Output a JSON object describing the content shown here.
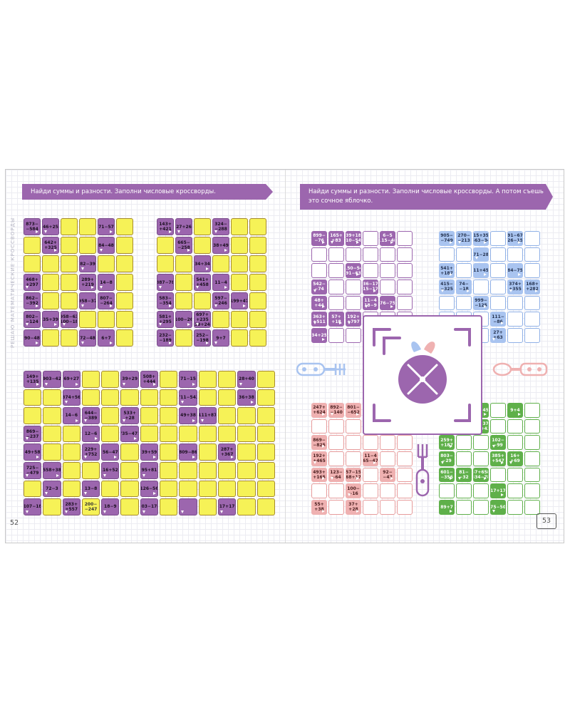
{
  "left_page": {
    "instruction": "Найди суммы и разности. Заполни числовые кроссворды.",
    "side_label": "РЕШАЮ МАТЕМАТИЧЕСКИЕ КРОССВОРДЫ",
    "page_number": "52",
    "crossword_1": {
      "cols": 6,
      "rows": 7,
      "cells": [
        [
          "873−\n−584",
          "46+25",
          "",
          "",
          "71−57",
          ""
        ],
        [
          "",
          "642+\n+325",
          "",
          "",
          "84−48",
          ""
        ],
        [
          "",
          "",
          "",
          "82−39",
          "",
          ""
        ],
        [
          "468+\n+297",
          "",
          "",
          "289+\n+219",
          "14−8",
          ""
        ],
        [
          "862−\n−392",
          "",
          "",
          "958−37",
          "807−\n−264",
          ""
        ],
        [
          "802−\n−124",
          "35+39",
          "958−63\n100−18",
          "",
          "",
          ""
        ],
        [
          "90−48",
          "",
          "",
          "72−48",
          "6+7",
          ""
        ]
      ],
      "purple": [
        [
          0,
          0
        ],
        [
          0,
          1
        ],
        [
          0,
          4
        ],
        [
          1,
          1
        ],
        [
          1,
          4
        ],
        [
          2,
          3
        ],
        [
          3,
          0
        ],
        [
          3,
          3
        ],
        [
          3,
          4
        ],
        [
          4,
          0
        ],
        [
          4,
          3
        ],
        [
          4,
          4
        ],
        [
          5,
          0
        ],
        [
          5,
          1
        ],
        [
          5,
          2
        ],
        [
          6,
          0
        ],
        [
          6,
          3
        ],
        [
          6,
          4
        ]
      ]
    },
    "crossword_2": {
      "cols": 6,
      "rows": 7,
      "cells": [
        [
          "143+\n+421",
          "27+26",
          "",
          "324−\n−288",
          "",
          ""
        ],
        [
          "",
          "665−\n−258",
          "",
          "38+49",
          "",
          ""
        ],
        [
          "",
          "",
          "34+34",
          "",
          "",
          ""
        ],
        [
          "887−78",
          "",
          "541+\n+458",
          "11−4",
          "",
          ""
        ],
        [
          "583−\n−354",
          "",
          "",
          "597−\n−246",
          "199+47",
          ""
        ],
        [
          "581+\n+295",
          "100−26",
          "697+\n+235\n39+24",
          "",
          "",
          ""
        ],
        [
          "232−\n−189",
          "",
          "252−\n−198",
          "9+7",
          "",
          ""
        ]
      ],
      "purple": [
        [
          0,
          0
        ],
        [
          0,
          1
        ],
        [
          0,
          3
        ],
        [
          1,
          1
        ],
        [
          1,
          3
        ],
        [
          2,
          2
        ],
        [
          3,
          0
        ],
        [
          3,
          2
        ],
        [
          3,
          3
        ],
        [
          4,
          0
        ],
        [
          4,
          3
        ],
        [
          4,
          4
        ],
        [
          5,
          0
        ],
        [
          5,
          1
        ],
        [
          5,
          2
        ],
        [
          6,
          0
        ],
        [
          6,
          2
        ],
        [
          6,
          3
        ]
      ]
    },
    "crossword_3": {
      "cols": 13,
      "rows": 8,
      "cells": [
        [
          "149+\n+135",
          "903−42",
          "69+27",
          "",
          "",
          "39+29",
          "508+\n+444",
          "",
          "71−15",
          "",
          "",
          "28+40",
          ""
        ],
        [
          "",
          "",
          "374+56",
          "",
          "",
          "",
          "",
          "",
          "711−542",
          "",
          "",
          "36+38",
          ""
        ],
        [
          "",
          "",
          "14−6",
          "644−\n−389",
          "",
          "533+\n+28",
          "",
          "",
          "49+38",
          "2111+873",
          "",
          "",
          ""
        ],
        [
          "869−\n−237",
          "",
          "",
          "12−6",
          "",
          "735−471",
          "",
          "",
          "",
          "",
          "",
          "",
          ""
        ],
        [
          "49+58",
          "",
          "",
          "229+\n+752",
          "56−47",
          "",
          "39+59",
          "",
          "809−86",
          "",
          "287+\n+367",
          "",
          ""
        ],
        [
          "725−\n−479",
          "558+38",
          "",
          "",
          "116+527",
          "",
          "95+81",
          "",
          "",
          "",
          "",
          "",
          ""
        ],
        [
          "",
          "72−3",
          "",
          "13−8",
          "",
          "",
          "126−56",
          "",
          "",
          "",
          "",
          "",
          ""
        ],
        [
          "107−18",
          "",
          "283+\n+557",
          "",
          "18−9",
          "",
          "203−178",
          "",
          "",
          "",
          "",
          "",
          ""
        ]
      ],
      "purple": [
        [
          0,
          0
        ],
        [
          0,
          1
        ],
        [
          0,
          2
        ],
        [
          0,
          5
        ],
        [
          0,
          6
        ],
        [
          0,
          8
        ],
        [
          0,
          11
        ],
        [
          1,
          2
        ],
        [
          1,
          8
        ],
        [
          1,
          11
        ],
        [
          2,
          2
        ],
        [
          2,
          3
        ],
        [
          2,
          5
        ],
        [
          2,
          8
        ],
        [
          2,
          9
        ],
        [
          3,
          0
        ],
        [
          3,
          3
        ],
        [
          3,
          5
        ],
        [
          4,
          0
        ],
        [
          4,
          3
        ],
        [
          4,
          4
        ],
        [
          4,
          6
        ],
        [
          4,
          8
        ],
        [
          4,
          10
        ],
        [
          5,
          0
        ],
        [
          5,
          1
        ],
        [
          5,
          4
        ],
        [
          5,
          6
        ],
        [
          6,
          1
        ],
        [
          6,
          3
        ],
        [
          6,
          6
        ],
        [
          7,
          0
        ],
        [
          7,
          2
        ],
        [
          7,
          4
        ],
        [
          7,
          6
        ],
        [
          7,
          8
        ],
        [
          7,
          10
        ]
      ],
      "extra_labels": {
        "r7c3": "200−\n−247",
        "r7c6": "100−10",
        "r7c10": "17+17"
      }
    }
  },
  "right_page": {
    "instruction": "Найди суммы и разности. Заполни числовые кроссворды. А потом съешь это сочное яблочко.",
    "page_number": "53",
    "colors": {
      "purple": "#9c66ae",
      "blue": "#a9c4f0",
      "pink": "#efb1b1",
      "green": "#5fb04a",
      "yellow": "#f6f257"
    },
    "crossword_purple": {
      "cols": 6,
      "rows": 7,
      "cells": [
        [
          "899−\n−76",
          "165+\n+83",
          "39+18\n910−546",
          "",
          "6−5\n115−48",
          ""
        ],
        [
          "",
          "",
          "",
          "",
          "",
          ""
        ],
        [
          "",
          "",
          "150−54\n91−63",
          "",
          "",
          ""
        ],
        [
          "542−\n−74",
          "",
          "",
          "36−17\n415−176",
          "",
          ""
        ],
        [
          "48+\n+44",
          "",
          "",
          "11−4\n18−9",
          "76−75",
          ""
        ],
        [
          "363+\n+511",
          "57+\n+18",
          "192+\n+797",
          "",
          "",
          ""
        ],
        [
          "34+25",
          "",
          "",
          "",
          "",
          ""
        ]
      ],
      "purple": [
        [
          0,
          0
        ],
        [
          0,
          1
        ],
        [
          0,
          2
        ],
        [
          0,
          4
        ],
        [
          2,
          2
        ],
        [
          3,
          0
        ],
        [
          3,
          3
        ],
        [
          4,
          0
        ],
        [
          4,
          3
        ],
        [
          4,
          4
        ],
        [
          5,
          0
        ],
        [
          5,
          1
        ],
        [
          5,
          2
        ],
        [
          6,
          0
        ]
      ]
    },
    "crossword_blue": {
      "cols": 6,
      "rows": 7,
      "cells": [
        [
          "905−\n−749",
          "270−\n−213",
          "15+35\n563−34",
          "",
          "91−67\n226−157",
          ""
        ],
        [
          "",
          "",
          "71−28",
          "",
          "",
          ""
        ],
        [
          "541+\n+187",
          "",
          "411+457",
          "",
          "84−75",
          ""
        ],
        [
          "415−\n−325",
          "74−\n−18",
          "",
          "",
          "374+\n+355",
          "168+\n+282"
        ],
        [
          "",
          "",
          "999−\n−125",
          "",
          "",
          ""
        ],
        [
          "",
          "",
          "",
          "111−\n−86",
          "",
          ""
        ],
        [
          "",
          "",
          "",
          "27+\n+63",
          "",
          ""
        ]
      ],
      "purple": [
        [
          0,
          0
        ],
        [
          0,
          1
        ],
        [
          0,
          2
        ],
        [
          0,
          4
        ],
        [
          1,
          2
        ],
        [
          2,
          0
        ],
        [
          2,
          2
        ],
        [
          2,
          4
        ],
        [
          3,
          0
        ],
        [
          3,
          1
        ],
        [
          3,
          4
        ],
        [
          3,
          5
        ],
        [
          4,
          2
        ],
        [
          5,
          3
        ],
        [
          6,
          3
        ]
      ]
    },
    "crossword_pink": {
      "cols": 6,
      "rows": 7,
      "cells": [
        [
          "247+\n+624",
          "892−\n−140",
          "801−\n−652",
          "",
          "",
          ""
        ],
        [
          "",
          "",
          "",
          "869−555\n326−315",
          "",
          ""
        ],
        [
          "869−\n−825",
          "",
          "",
          "",
          "",
          ""
        ],
        [
          "192+\n+465",
          "",
          "",
          "11−4\n765−479",
          "",
          ""
        ],
        [
          "493+\n+165",
          "123−\n−64",
          "57−15\n68+17",
          "",
          "92−\n−47",
          ""
        ],
        [
          "",
          "",
          "100−\n−16",
          "",
          "",
          ""
        ],
        [
          "55+\n+38",
          "",
          "37+\n+28",
          "",
          "",
          ""
        ]
      ],
      "purple": [
        [
          0,
          0
        ],
        [
          0,
          1
        ],
        [
          0,
          2
        ],
        [
          1,
          3
        ],
        [
          2,
          0
        ],
        [
          3,
          0
        ],
        [
          3,
          3
        ],
        [
          4,
          0
        ],
        [
          4,
          1
        ],
        [
          4,
          2
        ],
        [
          4,
          4
        ],
        [
          5,
          2
        ],
        [
          6,
          0
        ],
        [
          6,
          2
        ]
      ]
    },
    "crossword_green": {
      "cols": 6,
      "rows": 7,
      "cells": [
        [
          "",
          "",
          "27+45",
          "",
          "9+4",
          ""
        ],
        [
          "",
          "",
          "15+37\n269+43",
          "",
          "",
          ""
        ],
        [
          "259+\n+187",
          "",
          "",
          "102−\n−99",
          "",
          ""
        ],
        [
          "803−\n−29",
          "",
          "",
          "385+\n+547",
          "16+\n+69",
          ""
        ],
        [
          "601−\n−356",
          "81−\n−32",
          "57+658\n334−78",
          "",
          "",
          ""
        ],
        [
          "",
          "",
          "",
          "17+17",
          "",
          ""
        ],
        [
          "89+7",
          "",
          "",
          "75−50",
          "",
          ""
        ]
      ],
      "purple": [
        [
          0,
          2
        ],
        [
          0,
          4
        ],
        [
          1,
          2
        ],
        [
          2,
          0
        ],
        [
          2,
          3
        ],
        [
          3,
          0
        ],
        [
          3,
          3
        ],
        [
          3,
          4
        ],
        [
          4,
          0
        ],
        [
          4,
          1
        ],
        [
          4,
          2
        ],
        [
          5,
          3
        ],
        [
          6,
          0
        ],
        [
          6,
          3
        ]
      ],
      "void": [
        [
          0,
          0
        ],
        [
          0,
          1
        ],
        [
          1,
          0
        ],
        [
          1,
          1
        ]
      ]
    },
    "apple": {
      "icon": "apple-icon",
      "cutlery": [
        "fork-icon",
        "spoon-icon",
        "knife-icon"
      ]
    }
  }
}
